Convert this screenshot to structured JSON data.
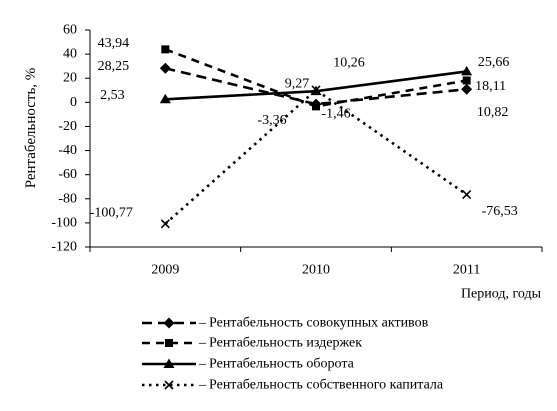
{
  "chart_data": {
    "type": "line",
    "categories": [
      "2009",
      "2010",
      "2011"
    ],
    "xlabel": "Период, годы",
    "ylabel": "Рентабельность, %",
    "ylim": [
      -120,
      60
    ],
    "yticks": [
      60,
      40,
      20,
      0,
      -20,
      -40,
      -60,
      -80,
      -100,
      -120
    ],
    "grid": false,
    "legend_position": "bottom",
    "legend_separator": "–",
    "series": [
      {
        "name": "Рентабельность совокупных активов",
        "values": [
          28.25,
          -1.46,
          10.82
        ],
        "labels": [
          "28,25",
          "-1,46",
          "10,82"
        ],
        "line_style": "long-dashed",
        "marker": "diamond",
        "color": "#000000"
      },
      {
        "name": "Рентабельность издержек",
        "values": [
          43.94,
          -3.36,
          18.11
        ],
        "labels": [
          "43,94",
          "-3,36",
          "18,11"
        ],
        "line_style": "dashed",
        "marker": "square",
        "color": "#000000"
      },
      {
        "name": "Рентабельность оборота",
        "values": [
          2.53,
          9.27,
          25.66
        ],
        "labels": [
          "2,53",
          "9,27",
          "25,66"
        ],
        "line_style": "solid",
        "marker": "triangle",
        "color": "#000000"
      },
      {
        "name": "Рентабельность собственного капитала",
        "values": [
          -100.77,
          10.26,
          -76.53
        ],
        "labels": [
          "-100,77",
          "10,26",
          "-76,53"
        ],
        "line_style": "dotted",
        "marker": "x",
        "color": "#000000"
      }
    ]
  }
}
